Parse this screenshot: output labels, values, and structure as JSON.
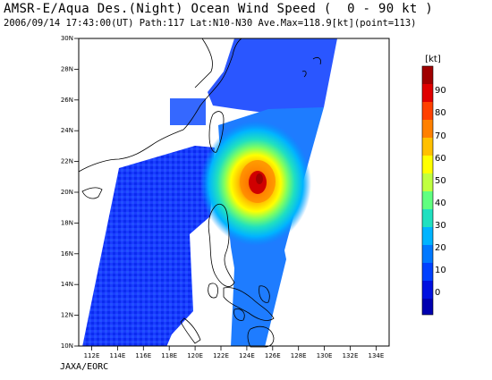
{
  "header": {
    "title": "AMSR-E/Aqua Des.(Night) Ocean Wind Speed (  0 - 90 kt )",
    "subtitle": "2006/09/14 17:43:00(UT) Path:117 Lat:N10-N30 Ave.Max=118.9[kt](point=113)"
  },
  "footer": {
    "credit": "JAXA/EORC"
  },
  "map": {
    "lat_labels": [
      "30N",
      "28N",
      "26N",
      "24N",
      "22N",
      "20N",
      "18N",
      "16N",
      "14N",
      "12N",
      "10N"
    ],
    "lon_labels": [
      "112E",
      "114E",
      "116E",
      "118E",
      "120E",
      "122E",
      "124E",
      "126E",
      "128E",
      "130E",
      "132E",
      "134E"
    ],
    "lat_range": [
      10,
      30
    ],
    "lon_range": [
      111,
      135
    ],
    "storm_center": {
      "lon": 124.6,
      "lat": 20.8
    },
    "colors": {
      "background": "#ffffff",
      "land_outline": "#000000",
      "frame": "#000000"
    }
  },
  "colorbar": {
    "unit": "[kt]",
    "tick_labels": [
      "90",
      "80",
      "70",
      "60",
      "50",
      "40",
      "30",
      "20",
      "10",
      "0"
    ],
    "colors": [
      "#a00000",
      "#e00000",
      "#ff4000",
      "#ff8000",
      "#ffc000",
      "#ffff00",
      "#c0ff40",
      "#60ff80",
      "#20e0c0",
      "#00b4ff",
      "#0078ff",
      "#0040ff",
      "#0010e0",
      "#0000b0"
    ]
  },
  "chart_data": {
    "type": "heatmap",
    "title": "AMSR-E/Aqua Des.(Night) Ocean Wind Speed (  0 - 90 kt )",
    "variable": "Ocean Wind Speed",
    "unit": "kt",
    "value_range": [
      0,
      90
    ],
    "x_range_deg_E": [
      111,
      135
    ],
    "y_range_deg_N": [
      10,
      30
    ],
    "max_average_kt": 118.9,
    "max_point": 113
  }
}
